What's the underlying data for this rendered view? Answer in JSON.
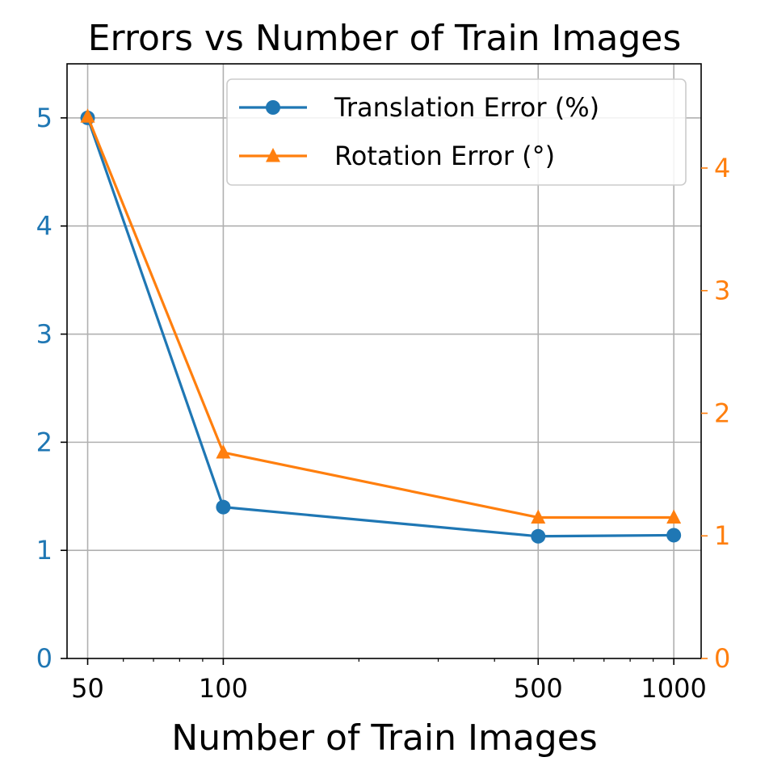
{
  "chart_data": {
    "type": "line",
    "title": "Errors vs Number of Train Images",
    "xlabel": "Number of Train Images",
    "x": [
      50,
      100,
      500,
      1000
    ],
    "x_tick_labels": [
      "50",
      "100",
      "500",
      "1000"
    ],
    "xscale": "log",
    "xlim": [
      45,
      1150
    ],
    "grid": true,
    "legend_position": "top-right",
    "series": [
      {
        "name": "Translation Error (%)",
        "axis": "left",
        "marker": "circle",
        "color": "#1f77b4",
        "values": [
          5.0,
          1.4,
          1.13,
          1.14
        ]
      },
      {
        "name": "Rotation Error (°)",
        "axis": "right",
        "marker": "triangle",
        "color": "#ff7f0e",
        "values": [
          4.42,
          1.68,
          1.15,
          1.15
        ]
      }
    ],
    "left_axis": {
      "ylim": [
        0,
        5.5
      ],
      "ticks": [
        0,
        1,
        2,
        3,
        4,
        5
      ],
      "tick_labels": [
        "0",
        "1",
        "2",
        "3",
        "4",
        "5"
      ],
      "color": "#1f77b4"
    },
    "right_axis": {
      "ylim": [
        0,
        4.85
      ],
      "ticks": [
        0,
        1,
        2,
        3,
        4
      ],
      "tick_labels": [
        "0",
        "1",
        "2",
        "3",
        "4"
      ],
      "color": "#ff7f0e"
    }
  }
}
